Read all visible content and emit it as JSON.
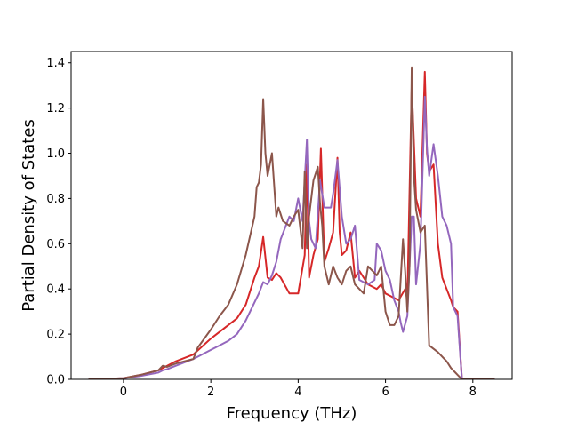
{
  "chart_data": {
    "type": "line",
    "title": "",
    "xlabel": "Frequency (THz)",
    "ylabel": "Partial Density of States",
    "xlim": [
      -1.2,
      8.9
    ],
    "ylim": [
      0.0,
      1.45
    ],
    "xticks": [
      0,
      2,
      4,
      6,
      8
    ],
    "yticks": [
      0.0,
      0.2,
      0.4,
      0.6,
      0.8,
      1.0,
      1.2,
      1.4
    ],
    "xtick_labels": [
      "0",
      "2",
      "4",
      "6",
      "8"
    ],
    "ytick_labels": [
      "0.0",
      "0.2",
      "0.4",
      "0.6",
      "0.8",
      "1.0",
      "1.2",
      "1.4"
    ],
    "grid": false,
    "legend": "none",
    "series": [
      {
        "color": "#d62728",
        "x": [
          -0.8,
          0.0,
          0.4,
          0.8,
          0.9,
          1.0,
          1.2,
          1.6,
          2.0,
          2.2,
          2.4,
          2.6,
          2.8,
          3.0,
          3.1,
          3.2,
          3.3,
          3.4,
          3.5,
          3.6,
          3.8,
          4.0,
          4.15,
          4.2,
          4.25,
          4.35,
          4.45,
          4.52,
          4.6,
          4.7,
          4.8,
          4.9,
          4.95,
          5.0,
          5.1,
          5.2,
          5.3,
          5.4,
          5.6,
          5.8,
          5.9,
          6.0,
          6.2,
          6.3,
          6.45,
          6.5,
          6.6,
          6.7,
          6.8,
          6.9,
          6.95,
          7.0,
          7.1,
          7.2,
          7.3,
          7.5,
          7.55,
          7.65,
          7.75,
          8.0,
          8.5
        ],
        "y": [
          0.0,
          0.005,
          0.02,
          0.04,
          0.05,
          0.06,
          0.08,
          0.11,
          0.18,
          0.21,
          0.24,
          0.27,
          0.33,
          0.45,
          0.5,
          0.63,
          0.45,
          0.44,
          0.47,
          0.45,
          0.38,
          0.38,
          0.55,
          0.95,
          0.45,
          0.55,
          0.62,
          1.02,
          0.52,
          0.58,
          0.65,
          0.98,
          0.65,
          0.55,
          0.57,
          0.65,
          0.45,
          0.48,
          0.42,
          0.4,
          0.42,
          0.38,
          0.36,
          0.35,
          0.4,
          0.35,
          1.3,
          0.8,
          0.72,
          1.36,
          1.0,
          0.92,
          0.95,
          0.6,
          0.45,
          0.35,
          0.32,
          0.3,
          0.0,
          0.0,
          0.0
        ]
      },
      {
        "color": "#9467bd",
        "x": [
          -0.8,
          0.0,
          0.4,
          0.8,
          0.9,
          1.0,
          1.2,
          1.6,
          2.0,
          2.2,
          2.4,
          2.6,
          2.8,
          3.0,
          3.1,
          3.2,
          3.3,
          3.4,
          3.5,
          3.6,
          3.8,
          3.9,
          4.0,
          4.1,
          4.2,
          4.25,
          4.3,
          4.4,
          4.5,
          4.6,
          4.75,
          4.8,
          4.9,
          5.0,
          5.1,
          5.2,
          5.3,
          5.4,
          5.6,
          5.75,
          5.8,
          5.9,
          6.0,
          6.1,
          6.2,
          6.3,
          6.35,
          6.4,
          6.5,
          6.6,
          6.65,
          6.7,
          6.8,
          6.9,
          6.95,
          7.0,
          7.1,
          7.2,
          7.3,
          7.4,
          7.5,
          7.55,
          7.65,
          7.75,
          8.0,
          8.5
        ],
        "y": [
          0.0,
          0.005,
          0.015,
          0.03,
          0.04,
          0.045,
          0.06,
          0.09,
          0.13,
          0.15,
          0.17,
          0.2,
          0.26,
          0.34,
          0.38,
          0.43,
          0.42,
          0.46,
          0.52,
          0.62,
          0.72,
          0.7,
          0.8,
          0.7,
          1.06,
          0.7,
          0.62,
          0.58,
          0.88,
          0.76,
          0.76,
          0.82,
          0.97,
          0.72,
          0.6,
          0.62,
          0.68,
          0.44,
          0.42,
          0.44,
          0.6,
          0.57,
          0.48,
          0.44,
          0.35,
          0.3,
          0.25,
          0.21,
          0.28,
          0.72,
          0.72,
          0.42,
          0.6,
          1.25,
          1.02,
          0.9,
          1.04,
          0.9,
          0.72,
          0.68,
          0.6,
          0.32,
          0.28,
          0.0,
          0.0,
          0.0
        ]
      },
      {
        "color": "#8c564b",
        "x": [
          -0.8,
          0.0,
          0.4,
          0.8,
          0.9,
          1.0,
          1.2,
          1.6,
          1.7,
          2.0,
          2.2,
          2.4,
          2.6,
          2.8,
          3.0,
          3.05,
          3.1,
          3.15,
          3.2,
          3.25,
          3.3,
          3.4,
          3.5,
          3.55,
          3.65,
          3.8,
          3.9,
          4.0,
          4.1,
          4.15,
          4.2,
          4.25,
          4.35,
          4.45,
          4.5,
          4.55,
          4.6,
          4.7,
          4.8,
          4.9,
          5.0,
          5.1,
          5.2,
          5.3,
          5.4,
          5.5,
          5.6,
          5.7,
          5.8,
          5.9,
          6.0,
          6.1,
          6.2,
          6.3,
          6.4,
          6.45,
          6.5,
          6.55,
          6.6,
          6.62,
          6.65,
          6.7,
          6.8,
          6.9,
          7.0,
          7.2,
          7.4,
          7.5,
          7.6,
          7.65,
          7.75,
          8.0,
          8.5
        ],
        "y": [
          0.0,
          0.005,
          0.02,
          0.04,
          0.06,
          0.055,
          0.07,
          0.09,
          0.14,
          0.22,
          0.28,
          0.33,
          0.42,
          0.55,
          0.72,
          0.85,
          0.87,
          0.95,
          1.24,
          1.0,
          0.9,
          1.0,
          0.72,
          0.76,
          0.7,
          0.68,
          0.72,
          0.75,
          0.58,
          0.92,
          0.58,
          0.72,
          0.88,
          0.94,
          0.78,
          0.68,
          0.5,
          0.42,
          0.5,
          0.45,
          0.42,
          0.48,
          0.5,
          0.42,
          0.4,
          0.38,
          0.5,
          0.48,
          0.46,
          0.5,
          0.3,
          0.24,
          0.24,
          0.28,
          0.62,
          0.48,
          0.3,
          0.5,
          1.38,
          1.2,
          0.9,
          0.75,
          0.65,
          0.68,
          0.15,
          0.12,
          0.08,
          0.05,
          0.03,
          0.02,
          0.0,
          0.0,
          0.0
        ]
      }
    ]
  }
}
